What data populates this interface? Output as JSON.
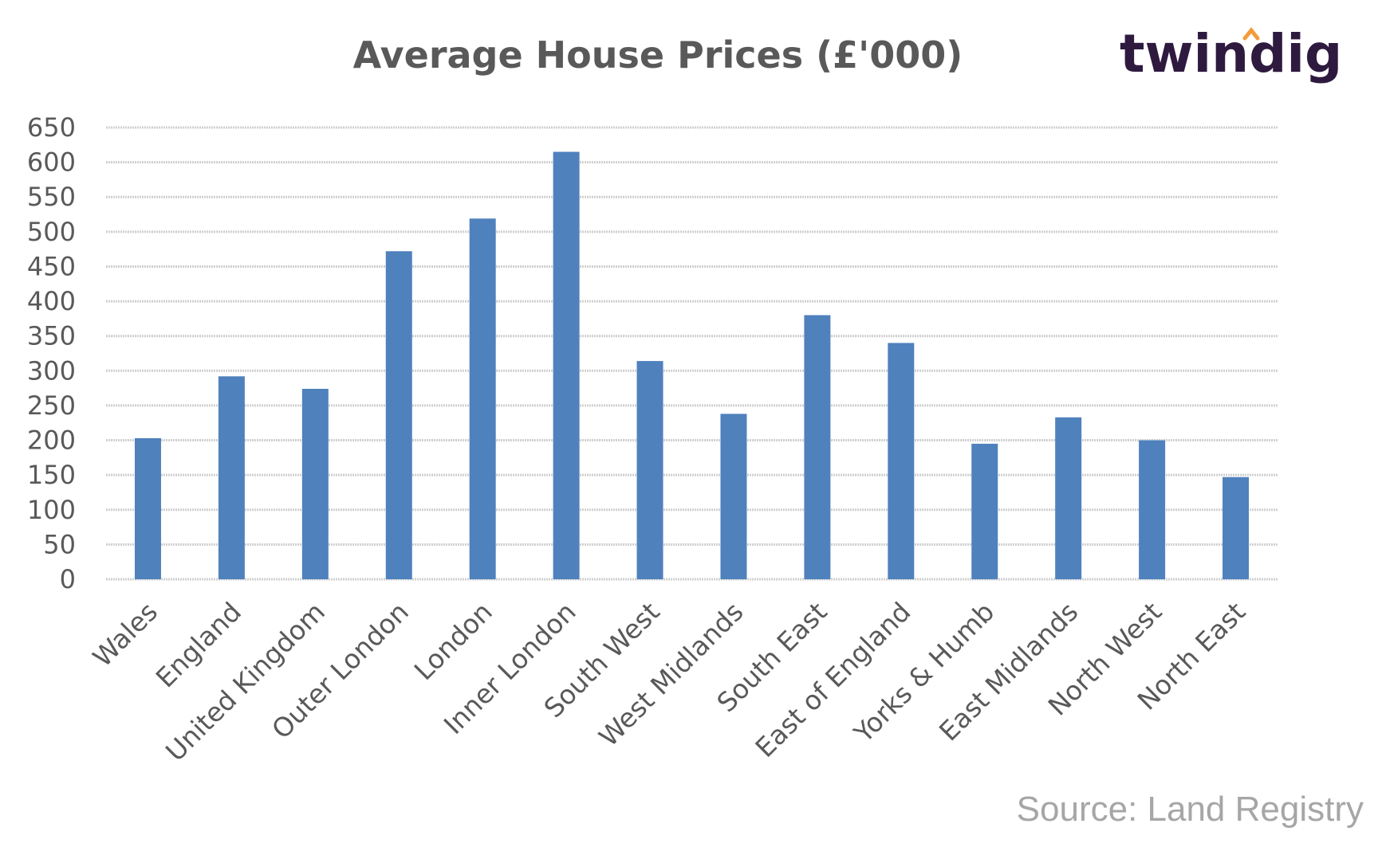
{
  "logo": {
    "text": "twindig",
    "accent_color": "#f39c3a",
    "color": "#2e1a3f"
  },
  "source": "Source: Land Registry",
  "chart_data": {
    "type": "bar",
    "title": "Average House Prices (£'000)",
    "xlabel": "",
    "ylabel": "",
    "ylim": [
      0,
      650
    ],
    "yticks": [
      0,
      50,
      100,
      150,
      200,
      250,
      300,
      350,
      400,
      450,
      500,
      550,
      600,
      650
    ],
    "grid": true,
    "bar_color": "#4f81bd",
    "categories": [
      "Wales",
      "England",
      "United Kingdom",
      "Outer London",
      "London",
      "Inner London",
      "South West",
      "West Midlands",
      "South East",
      "East of England",
      "Yorks & Humb",
      "East Midlands",
      "North West",
      "North East"
    ],
    "values": [
      203,
      292,
      274,
      472,
      519,
      615,
      314,
      238,
      380,
      340,
      195,
      233,
      200,
      147
    ]
  }
}
